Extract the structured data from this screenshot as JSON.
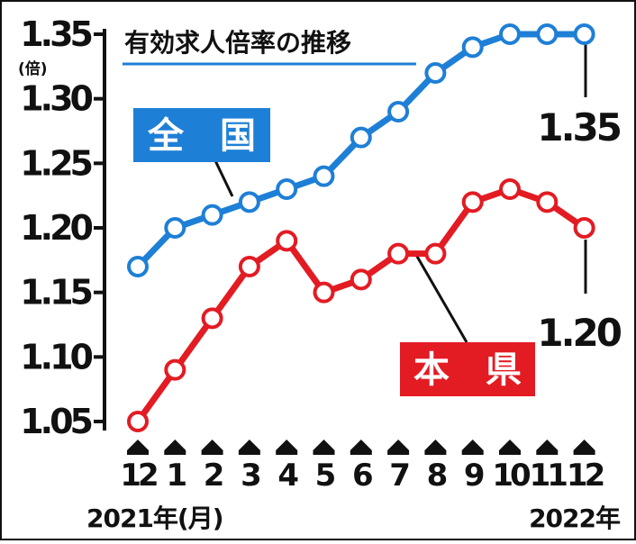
{
  "chart_data": {
    "type": "line",
    "title": "有効求人倍率の推移",
    "unit": "(倍)",
    "y_ticks": [
      "1.35",
      "1.30",
      "1.25",
      "1.20",
      "1.15",
      "1.10",
      "1.05"
    ],
    "ylim": [
      1.05,
      1.35
    ],
    "categories": [
      "12",
      "1",
      "2",
      "3",
      "4",
      "5",
      "6",
      "7",
      "8",
      "9",
      "10",
      "11",
      "12"
    ],
    "start_period_label": "2021年(月)",
    "end_period_label": "2022年",
    "series": [
      {
        "name": "全　国",
        "color": "#1e7fd6",
        "values": [
          1.17,
          1.2,
          1.21,
          1.22,
          1.23,
          1.24,
          1.27,
          1.29,
          1.32,
          1.34,
          1.35,
          1.35,
          1.35
        ],
        "end_label": "1.35"
      },
      {
        "name": "本　県",
        "color": "#e31b23",
        "values": [
          1.05,
          1.09,
          1.13,
          1.17,
          1.19,
          1.15,
          1.16,
          1.18,
          1.18,
          1.22,
          1.23,
          1.22,
          1.2
        ],
        "end_label": "1.20"
      }
    ],
    "grid": false,
    "legend": "inline labels"
  }
}
